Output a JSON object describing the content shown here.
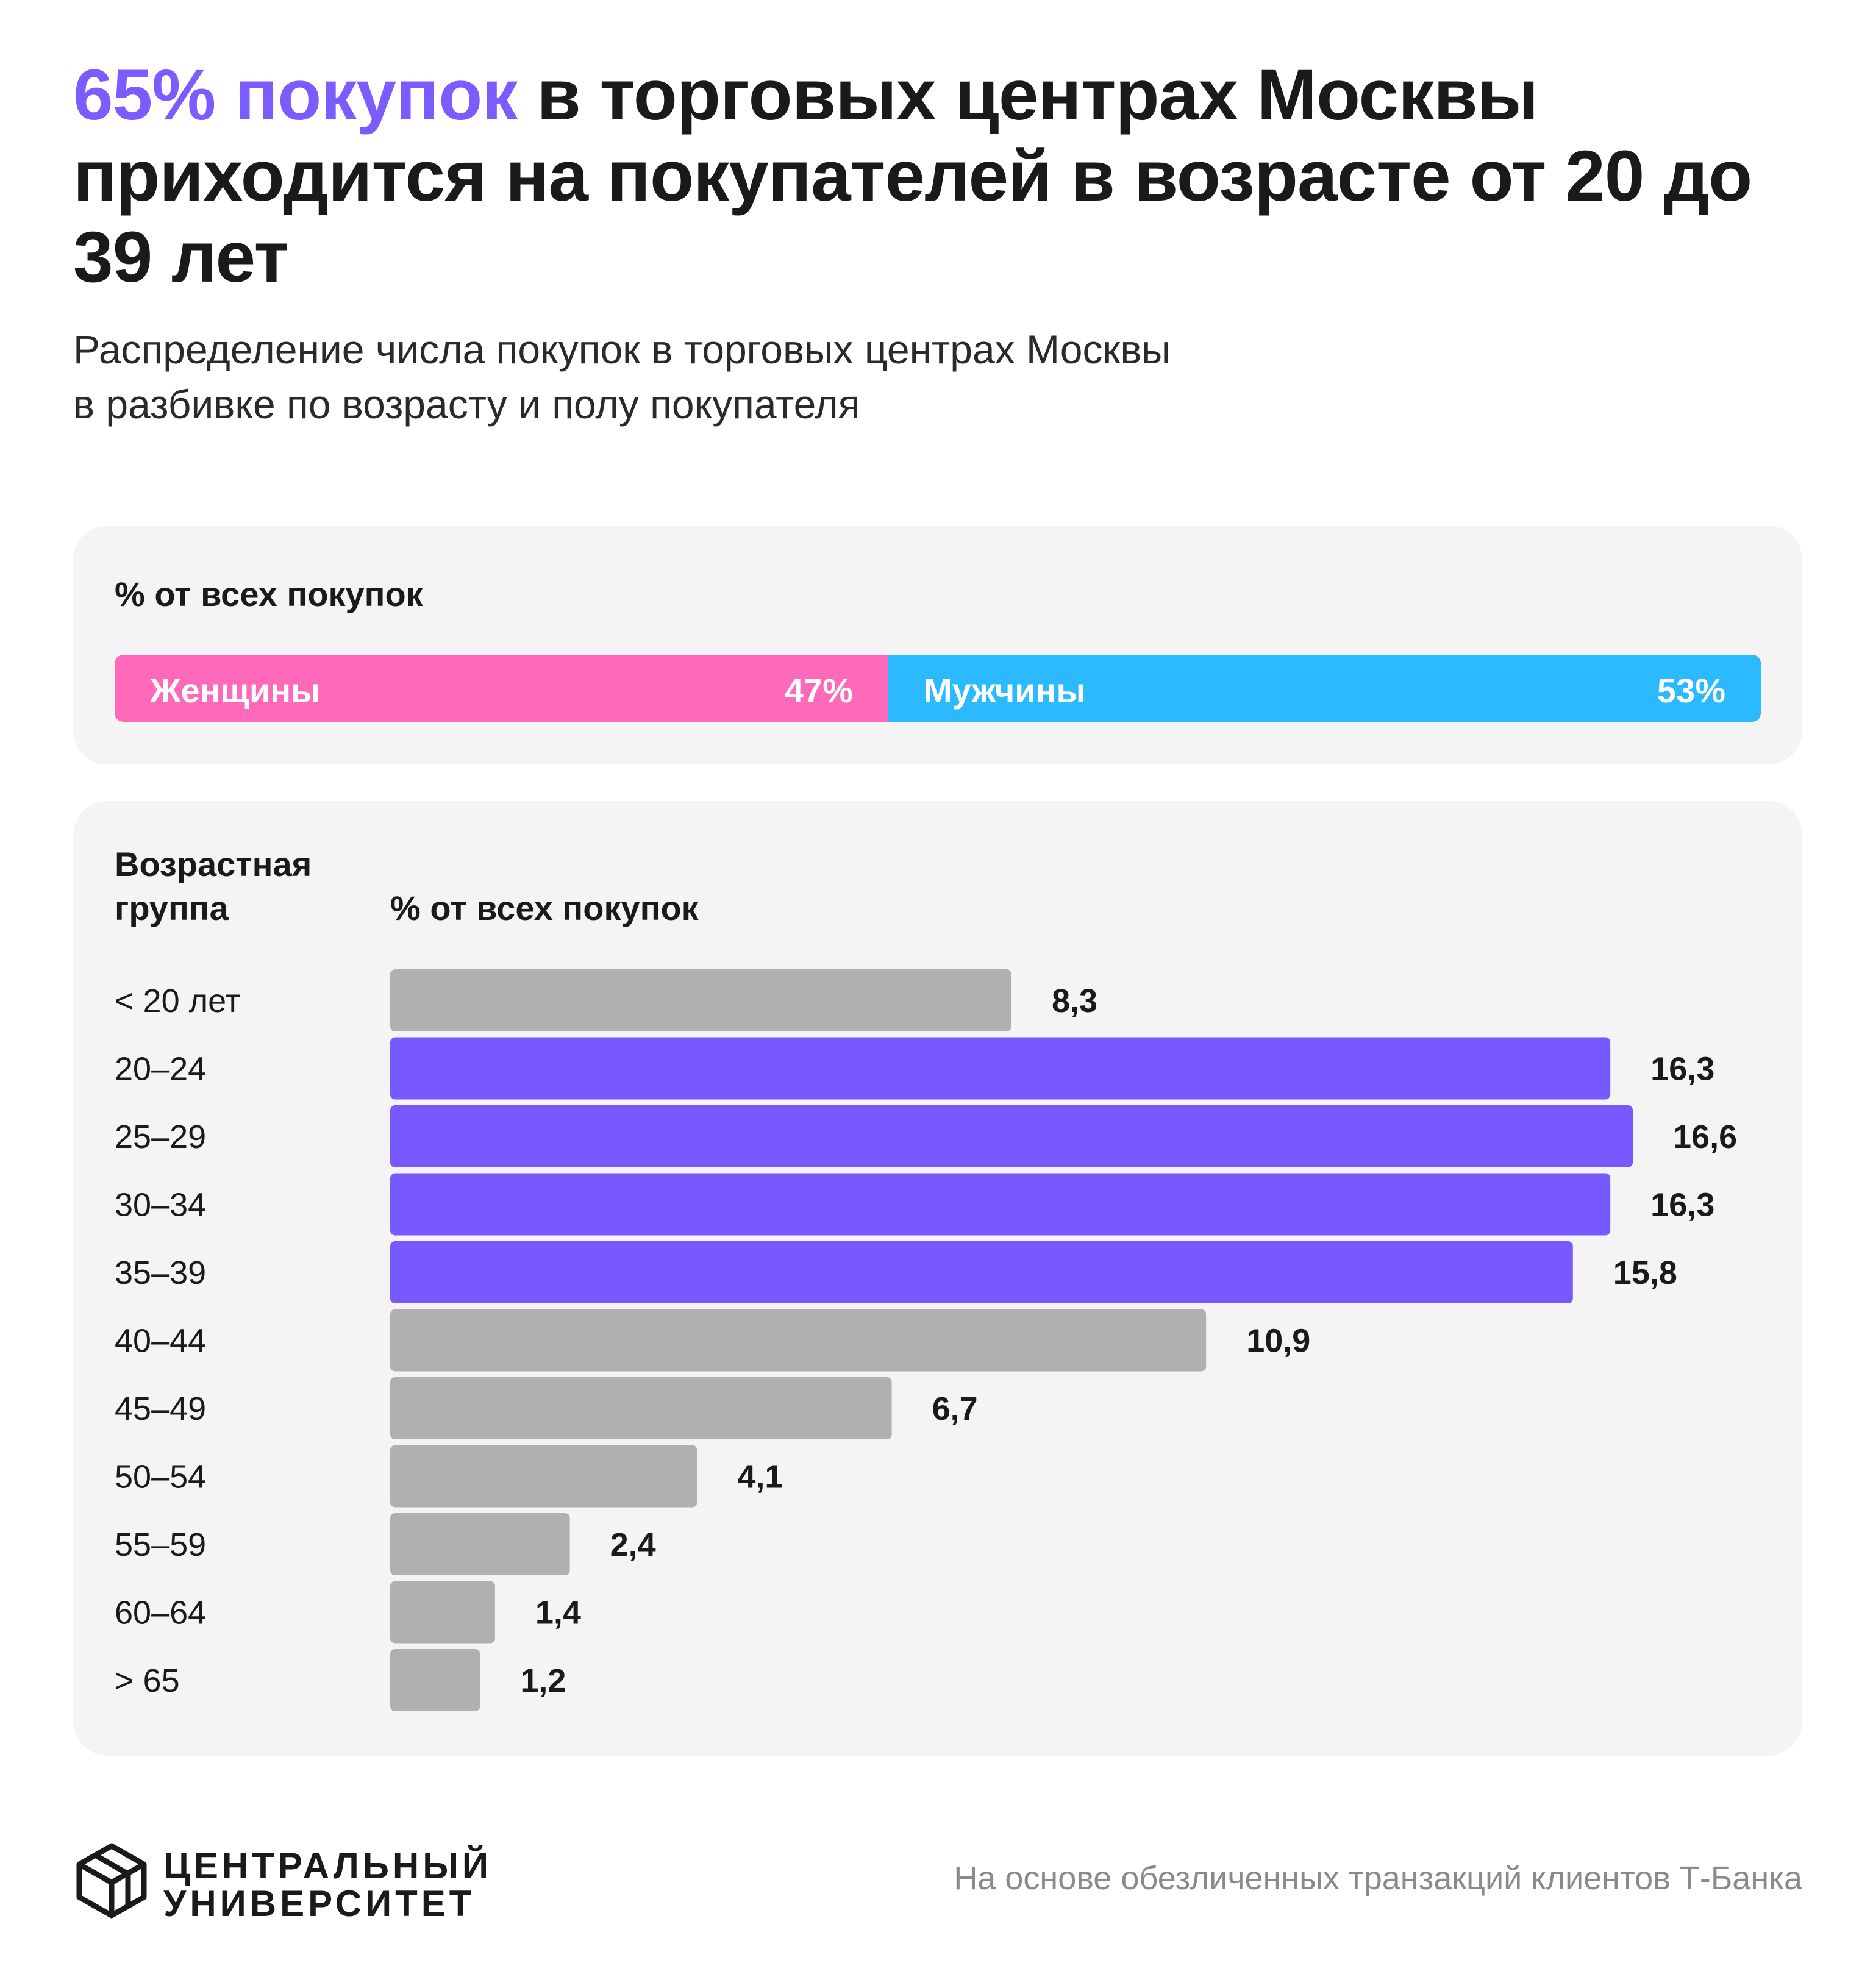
{
  "headline": {
    "accent": "65% покупок",
    "rest": " в торговых центрах Москвы приходится на покупателей в возрасте от 20 до 39 лет"
  },
  "subtitle": {
    "line1": "Распределение числа покупок в торговых центрах Москвы",
    "line2": "в разбивке по возрасту и полу покупателя"
  },
  "gender_card": {
    "title": "% от всех покупок",
    "women": {
      "label": "Женщины",
      "value_label": "47%",
      "value": 47,
      "color": "#ff69b9"
    },
    "men": {
      "label": "Мужчины",
      "value_label": "53%",
      "value": 53,
      "color": "#2bbaff"
    }
  },
  "age_card": {
    "col1_line1": "Возрастная",
    "col1_line2": "группа",
    "col2": "% от всех покупок"
  },
  "chart_data": {
    "type": "bar",
    "orientation": "horizontal",
    "categories": [
      "< 20 лет",
      "20–24",
      "25–29",
      "30–34",
      "35–39",
      "40–44",
      "45–49",
      "50–54",
      "55–59",
      "60–64",
      "> 65"
    ],
    "values": [
      8.3,
      16.3,
      16.6,
      16.3,
      15.8,
      10.9,
      6.7,
      4.1,
      2.4,
      1.4,
      1.2
    ],
    "value_labels": [
      "8,3",
      "16,3",
      "16,6",
      "16,3",
      "15,8",
      "10,9",
      "6,7",
      "4,1",
      "2,4",
      "1,4",
      "1,2"
    ],
    "highlight": [
      false,
      true,
      true,
      true,
      true,
      false,
      false,
      false,
      false,
      false,
      false
    ],
    "colors": {
      "highlight": "#7759ff",
      "default": "#b0b0b0"
    },
    "xlim": [
      0,
      16.6
    ],
    "grid": false
  },
  "footer": {
    "logo_line1": "ЦЕНТРАЛЬНЫЙ",
    "logo_line2": "УНИВЕРСИТЕТ",
    "note": "На основе обезличенных транзакций клиентов Т-Банка"
  }
}
